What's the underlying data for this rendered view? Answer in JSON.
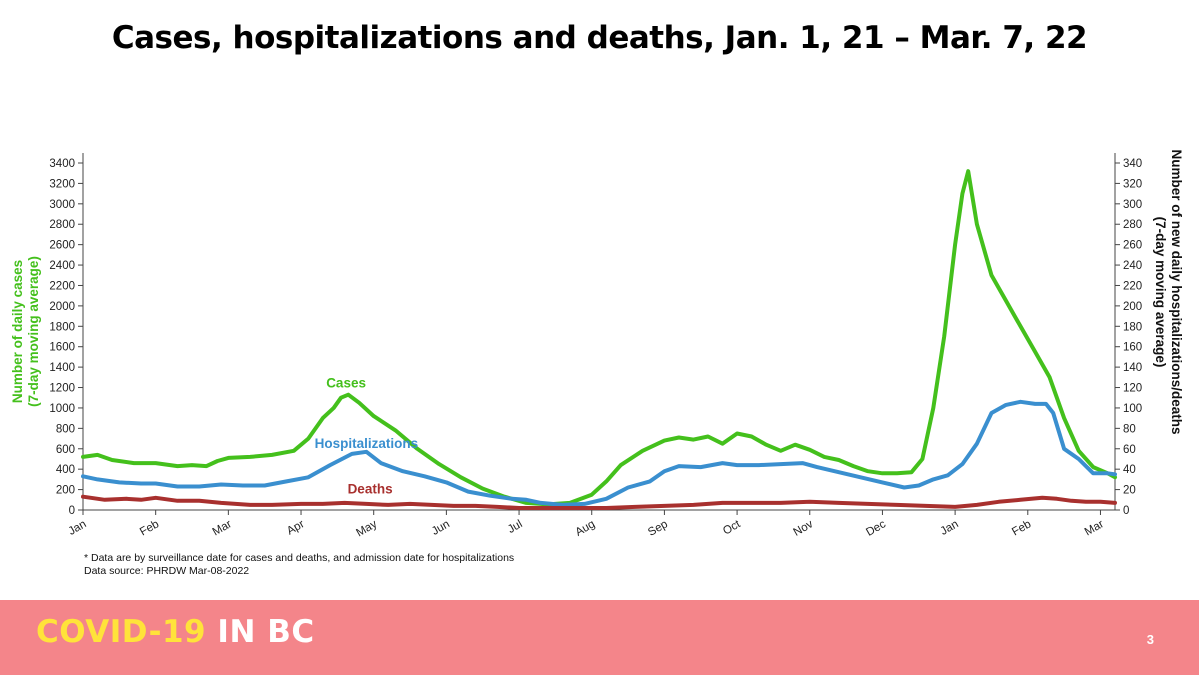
{
  "slide": {
    "title": "Cases, hospitalizations and deaths, Jan. 1,  21 – Mar. 7, 22",
    "footnote": "* Data are by surveillance date for cases and deaths, and admission date for hospitalizations",
    "source": "Data source: PHRDW Mar-08-2022",
    "brand_part1": "COVID-19",
    "brand_part2": "IN BC",
    "page_number": "3",
    "footer_color": "#f4858a",
    "brand_accent_color": "#ffe33a"
  },
  "chart_data": {
    "type": "line",
    "x_unit": "month",
    "x_start": 0,
    "x_end": 14.2,
    "x_ticks": [
      {
        "label": "Jan",
        "x": 0
      },
      {
        "label": "Feb",
        "x": 1
      },
      {
        "label": "Mar",
        "x": 2
      },
      {
        "label": "Apr",
        "x": 3
      },
      {
        "label": "May",
        "x": 4
      },
      {
        "label": "Jun",
        "x": 5
      },
      {
        "label": "Jul",
        "x": 6
      },
      {
        "label": "Aug",
        "x": 7
      },
      {
        "label": "Sep",
        "x": 8
      },
      {
        "label": "Oct",
        "x": 9
      },
      {
        "label": "Nov",
        "x": 10
      },
      {
        "label": "Dec",
        "x": 11
      },
      {
        "label": "Jan",
        "x": 12
      },
      {
        "label": "Feb",
        "x": 13
      },
      {
        "label": "Mar",
        "x": 14
      }
    ],
    "y_left": {
      "label_line1": "Number of daily cases",
      "label_line2": "(7-day moving average)",
      "min": 0,
      "max": 3400,
      "step": 200,
      "color": "#44c01c"
    },
    "y_right": {
      "label_line1": "Number of new daily hospitalizations/deaths",
      "label_line2": "(7-day moving average)",
      "min": 0,
      "max": 340,
      "step": 20,
      "color": "#111111"
    },
    "series": [
      {
        "name": "Cases",
        "axis": "left",
        "color": "#44c01c",
        "points": [
          [
            0,
            520
          ],
          [
            0.2,
            540
          ],
          [
            0.4,
            490
          ],
          [
            0.7,
            460
          ],
          [
            1,
            460
          ],
          [
            1.3,
            430
          ],
          [
            1.5,
            440
          ],
          [
            1.7,
            430
          ],
          [
            1.85,
            480
          ],
          [
            2,
            510
          ],
          [
            2.3,
            520
          ],
          [
            2.6,
            540
          ],
          [
            2.9,
            580
          ],
          [
            3.1,
            700
          ],
          [
            3.3,
            900
          ],
          [
            3.45,
            1000
          ],
          [
            3.55,
            1100
          ],
          [
            3.65,
            1130
          ],
          [
            3.8,
            1050
          ],
          [
            4,
            920
          ],
          [
            4.3,
            780
          ],
          [
            4.6,
            600
          ],
          [
            4.9,
            450
          ],
          [
            5.2,
            320
          ],
          [
            5.5,
            210
          ],
          [
            5.8,
            130
          ],
          [
            6.1,
            70
          ],
          [
            6.4,
            55
          ],
          [
            6.7,
            70
          ],
          [
            7,
            150
          ],
          [
            7.2,
            280
          ],
          [
            7.4,
            440
          ],
          [
            7.7,
            580
          ],
          [
            8,
            680
          ],
          [
            8.2,
            710
          ],
          [
            8.4,
            690
          ],
          [
            8.6,
            720
          ],
          [
            8.8,
            650
          ],
          [
            9,
            750
          ],
          [
            9.2,
            720
          ],
          [
            9.4,
            640
          ],
          [
            9.6,
            580
          ],
          [
            9.8,
            640
          ],
          [
            10,
            590
          ],
          [
            10.2,
            520
          ],
          [
            10.4,
            490
          ],
          [
            10.6,
            430
          ],
          [
            10.8,
            380
          ],
          [
            11,
            360
          ],
          [
            11.2,
            360
          ],
          [
            11.4,
            370
          ],
          [
            11.55,
            500
          ],
          [
            11.7,
            1000
          ],
          [
            11.85,
            1700
          ],
          [
            12,
            2600
          ],
          [
            12.1,
            3100
          ],
          [
            12.18,
            3320
          ],
          [
            12.3,
            2800
          ],
          [
            12.5,
            2300
          ],
          [
            12.7,
            2050
          ],
          [
            12.9,
            1800
          ],
          [
            13.1,
            1550
          ],
          [
            13.3,
            1300
          ],
          [
            13.5,
            900
          ],
          [
            13.7,
            580
          ],
          [
            13.9,
            420
          ],
          [
            14.1,
            360
          ],
          [
            14.2,
            320
          ]
        ]
      },
      {
        "name": "Hospitalizations",
        "axis": "right",
        "color": "#3a8fcf",
        "points": [
          [
            0,
            33
          ],
          [
            0.2,
            30
          ],
          [
            0.5,
            27
          ],
          [
            0.8,
            26
          ],
          [
            1,
            26
          ],
          [
            1.3,
            23
          ],
          [
            1.6,
            23
          ],
          [
            1.9,
            25
          ],
          [
            2.2,
            24
          ],
          [
            2.5,
            24
          ],
          [
            2.8,
            28
          ],
          [
            3.1,
            32
          ],
          [
            3.4,
            44
          ],
          [
            3.7,
            55
          ],
          [
            3.9,
            57
          ],
          [
            4.1,
            46
          ],
          [
            4.4,
            38
          ],
          [
            4.7,
            33
          ],
          [
            5,
            27
          ],
          [
            5.3,
            18
          ],
          [
            5.6,
            14
          ],
          [
            5.9,
            11
          ],
          [
            6.1,
            10
          ],
          [
            6.3,
            7
          ],
          [
            6.6,
            5
          ],
          [
            6.9,
            6
          ],
          [
            7.2,
            11
          ],
          [
            7.5,
            22
          ],
          [
            7.8,
            28
          ],
          [
            8,
            38
          ],
          [
            8.2,
            43
          ],
          [
            8.5,
            42
          ],
          [
            8.8,
            46
          ],
          [
            9,
            44
          ],
          [
            9.3,
            44
          ],
          [
            9.6,
            45
          ],
          [
            9.9,
            46
          ],
          [
            10.1,
            42
          ],
          [
            10.4,
            37
          ],
          [
            10.7,
            32
          ],
          [
            11,
            27
          ],
          [
            11.3,
            22
          ],
          [
            11.5,
            24
          ],
          [
            11.7,
            30
          ],
          [
            11.9,
            34
          ],
          [
            12.1,
            45
          ],
          [
            12.3,
            65
          ],
          [
            12.5,
            95
          ],
          [
            12.7,
            103
          ],
          [
            12.9,
            106
          ],
          [
            13.1,
            104
          ],
          [
            13.25,
            104
          ],
          [
            13.35,
            95
          ],
          [
            13.5,
            60
          ],
          [
            13.7,
            50
          ],
          [
            13.9,
            36
          ],
          [
            14.1,
            36
          ],
          [
            14.2,
            35
          ]
        ]
      },
      {
        "name": "Deaths",
        "axis": "right",
        "color": "#a8302e",
        "points": [
          [
            0,
            13
          ],
          [
            0.3,
            10
          ],
          [
            0.6,
            11
          ],
          [
            0.8,
            10
          ],
          [
            1,
            12
          ],
          [
            1.3,
            9
          ],
          [
            1.6,
            9
          ],
          [
            1.9,
            7
          ],
          [
            2.3,
            5
          ],
          [
            2.6,
            5
          ],
          [
            3,
            6
          ],
          [
            3.3,
            6
          ],
          [
            3.6,
            7
          ],
          [
            3.9,
            6
          ],
          [
            4.2,
            5
          ],
          [
            4.5,
            6
          ],
          [
            4.8,
            5
          ],
          [
            5.1,
            4
          ],
          [
            5.4,
            4
          ],
          [
            5.7,
            3
          ],
          [
            6,
            2
          ],
          [
            6.4,
            2
          ],
          [
            6.8,
            2
          ],
          [
            7.2,
            2
          ],
          [
            7.6,
            3
          ],
          [
            8,
            4
          ],
          [
            8.4,
            5
          ],
          [
            8.8,
            7
          ],
          [
            9.2,
            7
          ],
          [
            9.6,
            7
          ],
          [
            10,
            8
          ],
          [
            10.4,
            7
          ],
          [
            10.8,
            6
          ],
          [
            11.2,
            5
          ],
          [
            11.6,
            4
          ],
          [
            12,
            3
          ],
          [
            12.3,
            5
          ],
          [
            12.6,
            8
          ],
          [
            12.9,
            10
          ],
          [
            13.2,
            12
          ],
          [
            13.4,
            11
          ],
          [
            13.6,
            9
          ],
          [
            13.8,
            8
          ],
          [
            14,
            8
          ],
          [
            14.2,
            7
          ]
        ]
      }
    ],
    "series_labels": [
      {
        "text": "Cases",
        "series": "Cases",
        "at_x": 3.62,
        "at_y_left": 1170
      },
      {
        "text": "Hospitalizations",
        "series": "Hospitalizations",
        "at_x": 3.9,
        "at_y_right": 58
      },
      {
        "text": "Deaths",
        "series": "Deaths",
        "at_x": 3.95,
        "at_y_right": 13
      }
    ],
    "grid": false,
    "legend": "none"
  }
}
